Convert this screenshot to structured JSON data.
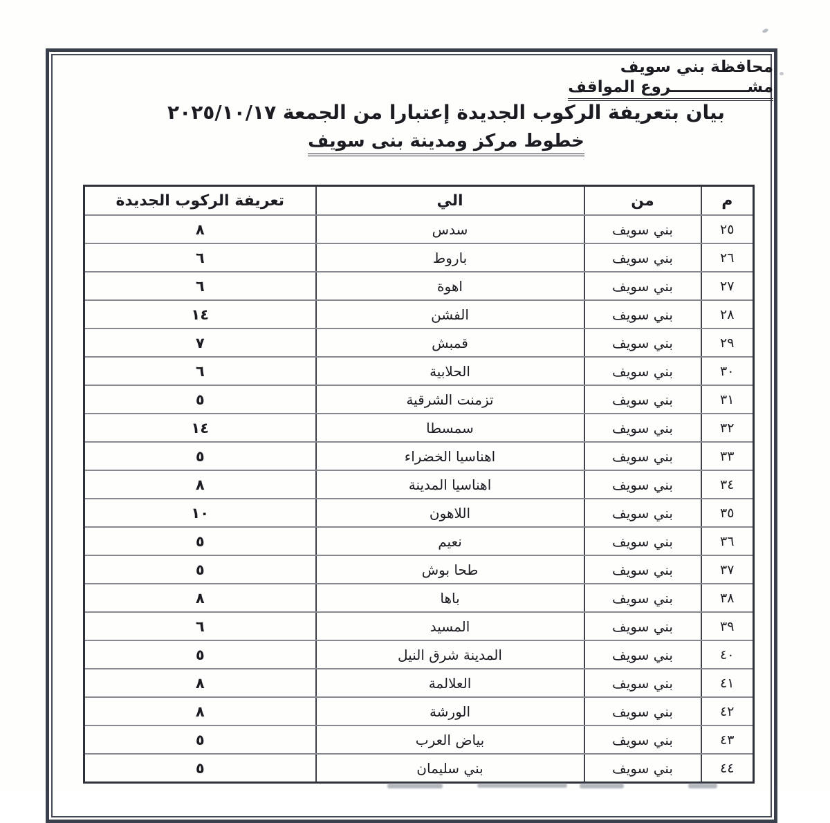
{
  "colors": {
    "ink": "#1b1b22",
    "frame": "#39404b"
  },
  "header": {
    "org_name": "محافظة بني سويف",
    "project_line": "مشــــــــــــــروع المواقف"
  },
  "titles": {
    "main": "بيان بتعريفة الركوب الجديدة إعتبارا من الجمعة ٢٠٢٥/١٠/١٧",
    "sub": "خطوط مركز ومدينة بنى سويف"
  },
  "table": {
    "headers": {
      "no": "م",
      "from": "من",
      "to": "الي",
      "fare": "تعريفة الركوب الجديدة"
    },
    "rows": [
      {
        "no": "٢٥",
        "from": "بني سويف",
        "to": "سدس",
        "fare": "٨"
      },
      {
        "no": "٢٦",
        "from": "بني سويف",
        "to": "باروط",
        "fare": "٦"
      },
      {
        "no": "٢٧",
        "from": "بني سويف",
        "to": "اهوة",
        "fare": "٦"
      },
      {
        "no": "٢٨",
        "from": "بني سويف",
        "to": "الفشن",
        "fare": "١٤"
      },
      {
        "no": "٢٩",
        "from": "بني سويف",
        "to": "قمبش",
        "fare": "٧"
      },
      {
        "no": "٣٠",
        "from": "بني سويف",
        "to": "الحلابية",
        "fare": "٦"
      },
      {
        "no": "٣١",
        "from": "بني سويف",
        "to": "تزمنت الشرقية",
        "fare": "٥"
      },
      {
        "no": "٣٢",
        "from": "بني سويف",
        "to": "سمسطا",
        "fare": "١٤"
      },
      {
        "no": "٣٣",
        "from": "بني سويف",
        "to": "اهناسيا الخضراء",
        "fare": "٥"
      },
      {
        "no": "٣٤",
        "from": "بني سويف",
        "to": "اهناسيا المدينة",
        "fare": "٨"
      },
      {
        "no": "٣٥",
        "from": "بني سويف",
        "to": "اللاهون",
        "fare": "١٠"
      },
      {
        "no": "٣٦",
        "from": "بني سويف",
        "to": "نعيم",
        "fare": "٥"
      },
      {
        "no": "٣٧",
        "from": "بني سويف",
        "to": "طحا بوش",
        "fare": "٥"
      },
      {
        "no": "٣٨",
        "from": "بني سويف",
        "to": "باها",
        "fare": "٨"
      },
      {
        "no": "٣٩",
        "from": "بني سويف",
        "to": "المسيد",
        "fare": "٦"
      },
      {
        "no": "٤٠",
        "from": "بني سويف",
        "to": "المدينة شرق النيل",
        "fare": "٥"
      },
      {
        "no": "٤١",
        "from": "بني سويف",
        "to": "العلالمة",
        "fare": "٨"
      },
      {
        "no": "٤٢",
        "from": "بني سويف",
        "to": "الورشة",
        "fare": "٨"
      },
      {
        "no": "٤٣",
        "from": "بني سويف",
        "to": "بياض العرب",
        "fare": "٥"
      },
      {
        "no": "٤٤",
        "from": "بني سويف",
        "to": "بني سليمان",
        "fare": "٥"
      }
    ]
  }
}
